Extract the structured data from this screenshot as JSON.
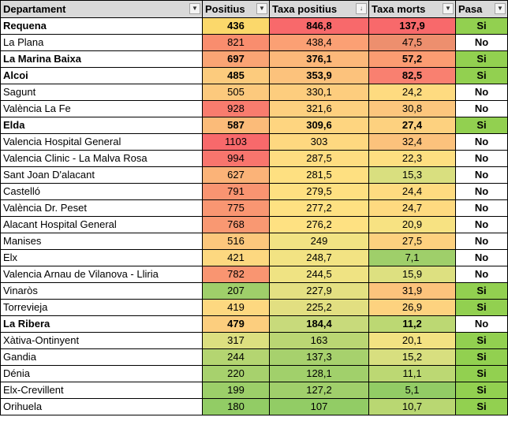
{
  "headers": [
    "Departament",
    "Positius",
    "Taxa positius",
    "Taxa morts",
    "Pasa"
  ],
  "filter_icons": [
    "▼",
    "▼",
    "↓",
    "▼",
    "▼"
  ],
  "rows": [
    {
      "dept": "Requena",
      "positius": "436",
      "taxa_positius": "846,8",
      "taxa_morts": "137,9",
      "pasa": "Si",
      "bold": true,
      "pos_color": "#fbd86b",
      "tp_color": "#f8696b",
      "tm_color": "#f8696b"
    },
    {
      "dept": "La Plana",
      "positius": "821",
      "taxa_positius": "438,4",
      "taxa_morts": "47,5",
      "pasa": "No",
      "bold": false,
      "pos_color": "#f98d6e",
      "tp_color": "#fba074",
      "tm_color": "#ed8f6e"
    },
    {
      "dept": "La Marina Baixa",
      "positius": "697",
      "taxa_positius": "376,1",
      "taxa_morts": "57,2",
      "pasa": "Si",
      "bold": true,
      "pos_color": "#faa474",
      "tp_color": "#fcb87a",
      "tm_color": "#fb9c72"
    },
    {
      "dept": "Alcoi",
      "positius": "485",
      "taxa_positius": "353,9",
      "taxa_morts": "82,5",
      "pasa": "Si",
      "bold": true,
      "pos_color": "#fccb7d",
      "tp_color": "#fcc27c",
      "tm_color": "#f98070"
    },
    {
      "dept": "Sagunt",
      "positius": "505",
      "taxa_positius": "330,1",
      "taxa_morts": "24,2",
      "pasa": "No",
      "bold": false,
      "pos_color": "#fcc97d",
      "tp_color": "#fdcd7e",
      "tm_color": "#fedb80"
    },
    {
      "dept": "València La Fe",
      "positius": "928",
      "taxa_positius": "321,6",
      "taxa_morts": "30,8",
      "pasa": "No",
      "bold": false,
      "pos_color": "#f87c6e",
      "tp_color": "#fdd07f",
      "tm_color": "#fcc67d"
    },
    {
      "dept": "Elda",
      "positius": "587",
      "taxa_positius": "309,6",
      "taxa_morts": "27,4",
      "pasa": "Si",
      "bold": true,
      "pos_color": "#fbbb79",
      "tp_color": "#fed580",
      "tm_color": "#fdd17f"
    },
    {
      "dept": "Valencia Hospital General",
      "positius": "1103",
      "taxa_positius": "303",
      "taxa_morts": "32,4",
      "pasa": "No",
      "bold": false,
      "pos_color": "#f8696b",
      "tp_color": "#fed880",
      "tm_color": "#fcc27c"
    },
    {
      "dept": "Valencia Clinic - La Malva Rosa",
      "positius": "994",
      "taxa_positius": "287,5",
      "taxa_morts": "22,3",
      "pasa": "No",
      "bold": false,
      "pos_color": "#f8756d",
      "tp_color": "#fedd81",
      "tm_color": "#fedf81"
    },
    {
      "dept": "Sant Joan D'alacant",
      "positius": "627",
      "taxa_positius": "281,5",
      "taxa_morts": "15,3",
      "pasa": "No",
      "bold": false,
      "pos_color": "#fbb378",
      "tp_color": "#fee081",
      "tm_color": "#d9df7f"
    },
    {
      "dept": "Castelló",
      "positius": "791",
      "taxa_positius": "279,5",
      "taxa_morts": "24,4",
      "pasa": "No",
      "bold": false,
      "pos_color": "#f99471",
      "tp_color": "#fee081",
      "tm_color": "#fedb80"
    },
    {
      "dept": "València Dr. Peset",
      "positius": "775",
      "taxa_positius": "277,2",
      "taxa_morts": "24,7",
      "pasa": "No",
      "bold": false,
      "pos_color": "#f99672",
      "tp_color": "#fee182",
      "tm_color": "#feda80"
    },
    {
      "dept": "Alacant Hospital General",
      "positius": "768",
      "taxa_positius": "276,2",
      "taxa_morts": "20,9",
      "pasa": "No",
      "bold": false,
      "pos_color": "#f99872",
      "tp_color": "#fee182",
      "tm_color": "#f7e282"
    },
    {
      "dept": "Manises",
      "positius": "516",
      "taxa_positius": "249",
      "taxa_morts": "27,5",
      "pasa": "No",
      "bold": false,
      "pos_color": "#fcc77c",
      "tp_color": "#f2e383",
      "tm_color": "#fdd17f"
    },
    {
      "dept": "Elx",
      "positius": "421",
      "taxa_positius": "248,7",
      "taxa_morts": "7,1",
      "pasa": "No",
      "bold": false,
      "pos_color": "#fdd880",
      "tp_color": "#f2e383",
      "tm_color": "#9fcf6a"
    },
    {
      "dept": "Valencia Arnau de Vilanova - Lliria",
      "positius": "782",
      "taxa_positius": "244,5",
      "taxa_morts": "15,9",
      "pasa": "No",
      "bold": false,
      "pos_color": "#f99571",
      "tp_color": "#efe383",
      "tm_color": "#dde080"
    },
    {
      "dept": "Vinaròs",
      "positius": "207",
      "taxa_positius": "227,9",
      "taxa_morts": "31,9",
      "pasa": "Si",
      "bold": false,
      "pos_color": "#9fcf6a",
      "tp_color": "#e4e082",
      "tm_color": "#fcc37c"
    },
    {
      "dept": "Torrevieja",
      "positius": "419",
      "taxa_positius": "225,2",
      "taxa_morts": "26,9",
      "pasa": "Si",
      "bold": false,
      "pos_color": "#fdd880",
      "tp_color": "#e2df81",
      "tm_color": "#fdd27f"
    },
    {
      "dept": "La Ribera",
      "positius": "479",
      "taxa_positius": "184,4",
      "taxa_morts": "11,2",
      "pasa": "No",
      "bold": true,
      "pos_color": "#fcce7e",
      "tp_color": "#c8da7b",
      "tm_color": "#bcd873"
    },
    {
      "dept": "Xàtiva-Ontinyent",
      "positius": "317",
      "taxa_positius": "163",
      "taxa_morts": "20,1",
      "pasa": "Si",
      "bold": false,
      "pos_color": "#dcdf80",
      "tp_color": "#bad673",
      "tm_color": "#f3e282"
    },
    {
      "dept": "Gandia",
      "positius": "244",
      "taxa_positius": "137,3",
      "taxa_morts": "15,2",
      "pasa": "Si",
      "bold": false,
      "pos_color": "#b4d571",
      "tp_color": "#a7d16d",
      "tm_color": "#d8df7f"
    },
    {
      "dept": "Dénia",
      "positius": "220",
      "taxa_positius": "128,1",
      "taxa_morts": "11,1",
      "pasa": "Si",
      "bold": false,
      "pos_color": "#a7d16d",
      "tp_color": "#a1d06b",
      "tm_color": "#bcd873"
    },
    {
      "dept": "Elx-Crevillent",
      "positius": "199",
      "taxa_positius": "127,2",
      "taxa_morts": "5,1",
      "pasa": "Si",
      "bold": false,
      "pos_color": "#9ccf69",
      "tp_color": "#a0cf6b",
      "tm_color": "#92cc65"
    },
    {
      "dept": "Orihuela",
      "positius": "180",
      "taxa_positius": "107",
      "taxa_morts": "10,7",
      "pasa": "Si",
      "bold": false,
      "pos_color": "#92cc65",
      "tp_color": "#92cc65",
      "tm_color": "#b9d772"
    }
  ],
  "colors": {
    "header_bg": "#d9d9d9",
    "pasa_si": "#92d050",
    "pasa_no": "#ffffff"
  }
}
